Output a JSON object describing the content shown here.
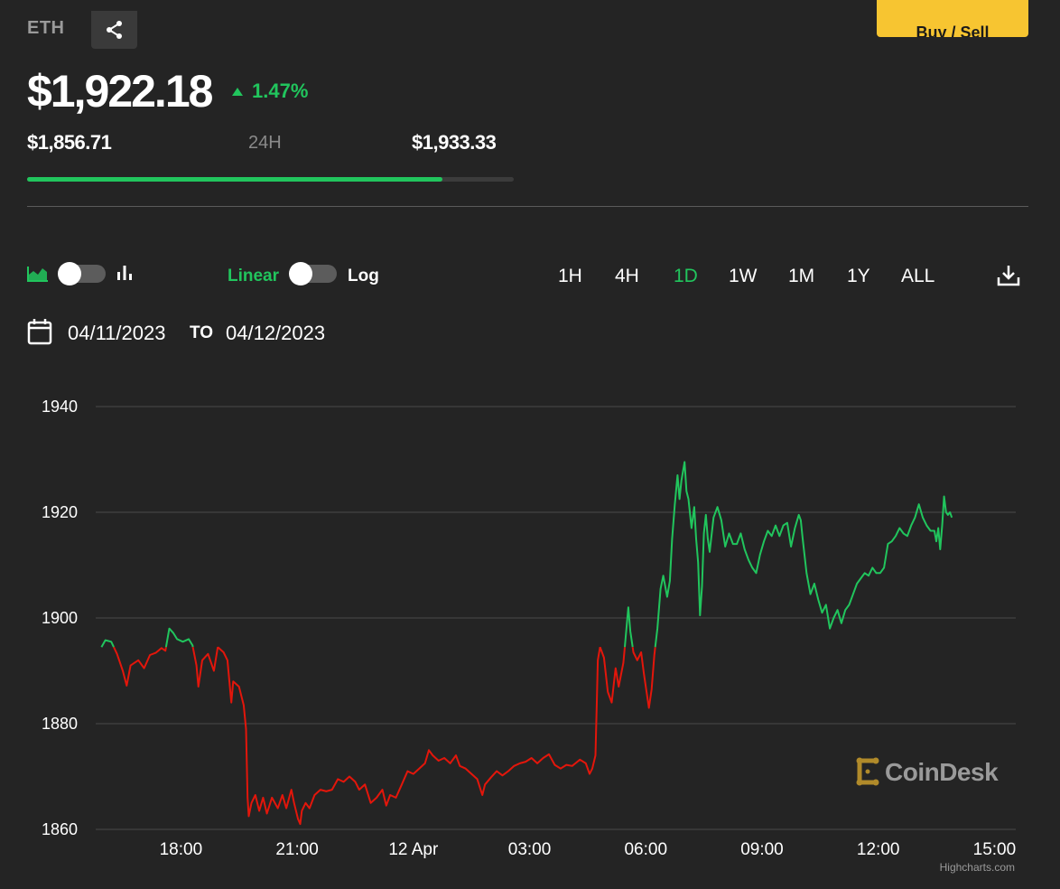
{
  "header": {
    "symbol": "ETH",
    "share_icon": "share-icon",
    "buy_sell_label": "Buy / Sell",
    "price": "$1,922.18",
    "change_pct": "1.47%",
    "change_direction": "up",
    "range_low": "$1,856.71",
    "range_label": "24H",
    "range_high": "$1,933.33",
    "range_progress_fraction": 0.854
  },
  "controls": {
    "area_chart_icon": "area-chart-icon",
    "bar_chart_icon": "bar-chart-icon",
    "linear_label": "Linear",
    "log_label": "Log",
    "timeframes": [
      "1H",
      "4H",
      "1D",
      "1W",
      "1M",
      "1Y",
      "ALL"
    ],
    "active_timeframe": "1D",
    "download_icon": "download-icon",
    "calendar_icon": "calendar-icon",
    "date_from": "04/11/2023",
    "to_label": "TO",
    "date_to": "04/12/2023"
  },
  "colors": {
    "background": "#242424",
    "up": "#21c55d",
    "down": "#e3160b",
    "grid": "#4a4a4a",
    "accent_yellow": "#f7c531"
  },
  "watermark": {
    "brand": "CoinDesk",
    "credit": "Highcharts.com"
  },
  "chart_data": {
    "type": "line",
    "x_unit": "time of day (hours from 11 Apr 00:00)",
    "xlim": [
      15.8,
      39.55
    ],
    "ylim": [
      1860,
      1940
    ],
    "y_ticks": [
      1860,
      1880,
      1900,
      1920,
      1940
    ],
    "x_ticks": [
      {
        "x": 18,
        "label": "18:00"
      },
      {
        "x": 21,
        "label": "21:00"
      },
      {
        "x": 24,
        "label": "12 Apr"
      },
      {
        "x": 27,
        "label": "03:00"
      },
      {
        "x": 30,
        "label": "06:00"
      },
      {
        "x": 33,
        "label": "09:00"
      },
      {
        "x": 36,
        "label": "12:00"
      },
      {
        "x": 39,
        "label": "15:00"
      }
    ],
    "reference_value": 1894.5,
    "grid": true,
    "color_rule": "green above reference, red below",
    "points": [
      [
        15.95,
        1894.5
      ],
      [
        16.05,
        1895.8
      ],
      [
        16.2,
        1895.5
      ],
      [
        16.35,
        1893.2
      ],
      [
        16.5,
        1890
      ],
      [
        16.6,
        1887.2
      ],
      [
        16.7,
        1891
      ],
      [
        16.9,
        1892
      ],
      [
        17.05,
        1890.5
      ],
      [
        17.2,
        1893
      ],
      [
        17.35,
        1893.4
      ],
      [
        17.5,
        1894.3
      ],
      [
        17.6,
        1893.8
      ],
      [
        17.7,
        1898
      ],
      [
        17.8,
        1897.2
      ],
      [
        17.9,
        1896
      ],
      [
        18.05,
        1895.5
      ],
      [
        18.2,
        1896
      ],
      [
        18.3,
        1894.8
      ],
      [
        18.4,
        1891
      ],
      [
        18.45,
        1887
      ],
      [
        18.55,
        1892
      ],
      [
        18.7,
        1893.2
      ],
      [
        18.85,
        1890
      ],
      [
        18.95,
        1894.5
      ],
      [
        19.1,
        1893.5
      ],
      [
        19.2,
        1892
      ],
      [
        19.3,
        1884
      ],
      [
        19.35,
        1888
      ],
      [
        19.5,
        1887
      ],
      [
        19.62,
        1883.5
      ],
      [
        19.68,
        1879
      ],
      [
        19.72,
        1866
      ],
      [
        19.75,
        1862.5
      ],
      [
        19.82,
        1865
      ],
      [
        19.92,
        1866.5
      ],
      [
        20.02,
        1863.5
      ],
      [
        20.12,
        1866
      ],
      [
        20.22,
        1863
      ],
      [
        20.35,
        1866
      ],
      [
        20.5,
        1864
      ],
      [
        20.62,
        1866.5
      ],
      [
        20.72,
        1864
      ],
      [
        20.85,
        1867.5
      ],
      [
        20.92,
        1865
      ],
      [
        21.02,
        1862
      ],
      [
        21.08,
        1861
      ],
      [
        21.12,
        1863.5
      ],
      [
        21.22,
        1865
      ],
      [
        21.32,
        1864
      ],
      [
        21.45,
        1866.5
      ],
      [
        21.6,
        1867.5
      ],
      [
        21.75,
        1867.2
      ],
      [
        21.9,
        1867.5
      ],
      [
        22.05,
        1869.5
      ],
      [
        22.2,
        1869
      ],
      [
        22.35,
        1870
      ],
      [
        22.5,
        1869
      ],
      [
        22.6,
        1867.5
      ],
      [
        22.75,
        1868.5
      ],
      [
        22.9,
        1865
      ],
      [
        23.05,
        1866
      ],
      [
        23.2,
        1867.5
      ],
      [
        23.3,
        1864.5
      ],
      [
        23.4,
        1866.5
      ],
      [
        23.55,
        1866
      ],
      [
        23.7,
        1868.5
      ],
      [
        23.85,
        1871
      ],
      [
        24.0,
        1870.5
      ],
      [
        24.15,
        1871.5
      ],
      [
        24.3,
        1872.5
      ],
      [
        24.4,
        1875
      ],
      [
        24.5,
        1874
      ],
      [
        24.65,
        1873
      ],
      [
        24.8,
        1873.5
      ],
      [
        24.95,
        1872.5
      ],
      [
        25.1,
        1874
      ],
      [
        25.2,
        1872
      ],
      [
        25.35,
        1871.5
      ],
      [
        25.5,
        1870.5
      ],
      [
        25.65,
        1869.5
      ],
      [
        25.78,
        1866.5
      ],
      [
        25.85,
        1868.5
      ],
      [
        26.0,
        1869.8
      ],
      [
        26.15,
        1871
      ],
      [
        26.3,
        1870.2
      ],
      [
        26.45,
        1871
      ],
      [
        26.6,
        1872
      ],
      [
        26.75,
        1872.5
      ],
      [
        26.9,
        1872.8
      ],
      [
        27.05,
        1873.5
      ],
      [
        27.2,
        1872.5
      ],
      [
        27.35,
        1873.5
      ],
      [
        27.5,
        1874.2
      ],
      [
        27.65,
        1872.2
      ],
      [
        27.8,
        1871.5
      ],
      [
        27.95,
        1872.2
      ],
      [
        28.1,
        1872
      ],
      [
        28.3,
        1873.2
      ],
      [
        28.45,
        1872.5
      ],
      [
        28.55,
        1870.5
      ],
      [
        28.62,
        1871.5
      ],
      [
        28.7,
        1874
      ],
      [
        28.74,
        1885.5
      ],
      [
        28.76,
        1892
      ],
      [
        28.82,
        1894.5
      ],
      [
        28.92,
        1892.5
      ],
      [
        29.02,
        1886
      ],
      [
        29.12,
        1884
      ],
      [
        29.22,
        1890.5
      ],
      [
        29.3,
        1887
      ],
      [
        29.42,
        1891.5
      ],
      [
        29.5,
        1898
      ],
      [
        29.55,
        1902
      ],
      [
        29.6,
        1897.5
      ],
      [
        29.68,
        1893.5
      ],
      [
        29.78,
        1892
      ],
      [
        29.88,
        1893.5
      ],
      [
        29.95,
        1889.5
      ],
      [
        30.02,
        1886
      ],
      [
        30.08,
        1883
      ],
      [
        30.15,
        1886.5
      ],
      [
        30.22,
        1893
      ],
      [
        30.3,
        1898
      ],
      [
        30.38,
        1905.5
      ],
      [
        30.45,
        1908
      ],
      [
        30.55,
        1904
      ],
      [
        30.62,
        1907
      ],
      [
        30.68,
        1915
      ],
      [
        30.75,
        1921.5
      ],
      [
        30.82,
        1927
      ],
      [
        30.87,
        1922.5
      ],
      [
        30.92,
        1926
      ],
      [
        31.0,
        1929.5
      ],
      [
        31.05,
        1924
      ],
      [
        31.1,
        1922.5
      ],
      [
        31.18,
        1917
      ],
      [
        31.25,
        1921
      ],
      [
        31.3,
        1915
      ],
      [
        31.35,
        1910.5
      ],
      [
        31.4,
        1900.5
      ],
      [
        31.45,
        1906
      ],
      [
        31.5,
        1916
      ],
      [
        31.55,
        1919.5
      ],
      [
        31.6,
        1915
      ],
      [
        31.65,
        1912.5
      ],
      [
        31.75,
        1919
      ],
      [
        31.85,
        1921
      ],
      [
        31.95,
        1918.5
      ],
      [
        32.05,
        1913.5
      ],
      [
        32.15,
        1916
      ],
      [
        32.25,
        1914
      ],
      [
        32.35,
        1914
      ],
      [
        32.45,
        1916
      ],
      [
        32.55,
        1913
      ],
      [
        32.65,
        1911
      ],
      [
        32.75,
        1909.5
      ],
      [
        32.85,
        1908.5
      ],
      [
        32.95,
        1912
      ],
      [
        33.05,
        1914.5
      ],
      [
        33.15,
        1916.5
      ],
      [
        33.25,
        1915.5
      ],
      [
        33.35,
        1917.5
      ],
      [
        33.45,
        1915.5
      ],
      [
        33.55,
        1917.5
      ],
      [
        33.65,
        1918
      ],
      [
        33.75,
        1913.5
      ],
      [
        33.85,
        1917
      ],
      [
        33.95,
        1919.5
      ],
      [
        34.0,
        1918.5
      ],
      [
        34.05,
        1915
      ],
      [
        34.15,
        1908.5
      ],
      [
        34.25,
        1904.5
      ],
      [
        34.35,
        1906.5
      ],
      [
        34.45,
        1903.5
      ],
      [
        34.55,
        1901
      ],
      [
        34.65,
        1902.5
      ],
      [
        34.75,
        1898
      ],
      [
        34.85,
        1900
      ],
      [
        34.95,
        1901.5
      ],
      [
        35.05,
        1899
      ],
      [
        35.15,
        1901.5
      ],
      [
        35.25,
        1902.5
      ],
      [
        35.35,
        1904.5
      ],
      [
        35.45,
        1906.5
      ],
      [
        35.55,
        1907.5
      ],
      [
        35.65,
        1908.5
      ],
      [
        35.75,
        1908
      ],
      [
        35.85,
        1909.5
      ],
      [
        35.95,
        1908.5
      ],
      [
        36.05,
        1908.5
      ],
      [
        36.15,
        1909.5
      ],
      [
        36.25,
        1914
      ],
      [
        36.35,
        1914.5
      ],
      [
        36.45,
        1915.5
      ],
      [
        36.55,
        1917
      ],
      [
        36.65,
        1916
      ],
      [
        36.75,
        1915.5
      ],
      [
        36.85,
        1917.5
      ],
      [
        36.95,
        1919
      ],
      [
        37.05,
        1921.5
      ],
      [
        37.15,
        1919
      ],
      [
        37.25,
        1917.5
      ],
      [
        37.35,
        1916.5
      ],
      [
        37.45,
        1916.5
      ],
      [
        37.5,
        1914.5
      ],
      [
        37.55,
        1917
      ],
      [
        37.6,
        1913
      ],
      [
        37.65,
        1917.5
      ],
      [
        37.7,
        1923
      ],
      [
        37.75,
        1920
      ],
      [
        37.8,
        1919.5
      ],
      [
        37.85,
        1920
      ],
      [
        37.9,
        1919
      ]
    ]
  }
}
